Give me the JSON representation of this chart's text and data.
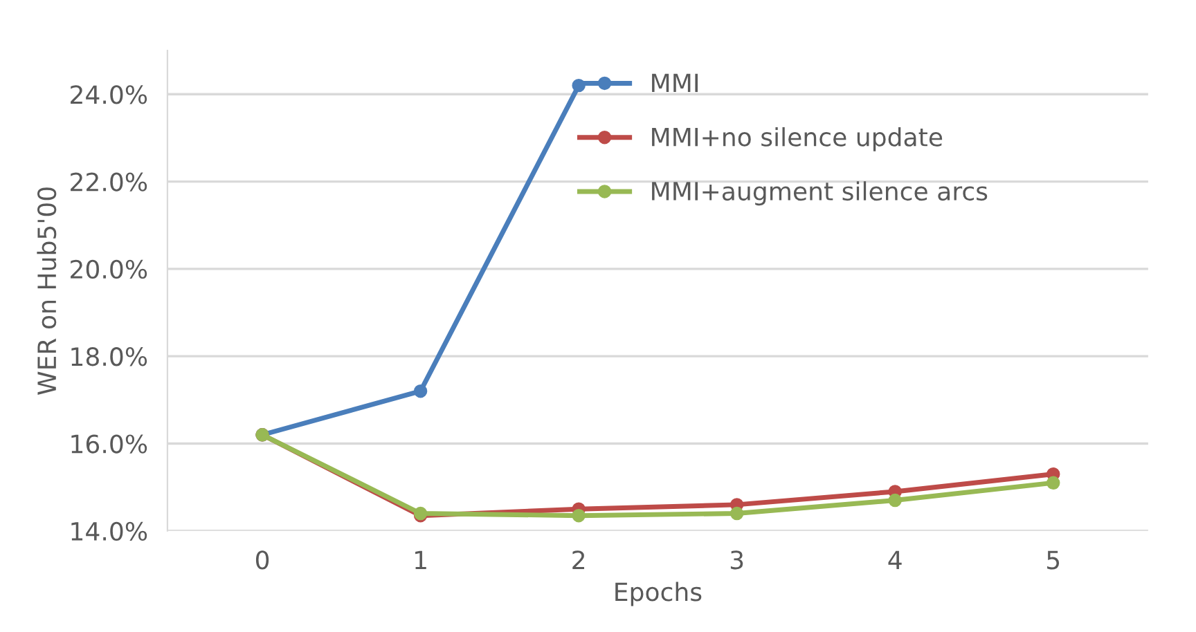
{
  "chart_data": {
    "type": "line",
    "xlabel": "Epochs",
    "ylabel": "WER on Hub5'00",
    "categories": [
      "0",
      "1",
      "2",
      "3",
      "4",
      "5"
    ],
    "series": [
      {
        "name": "MMI",
        "color": "#4a7ebb",
        "values": [
          16.2,
          17.2,
          24.2,
          null,
          null,
          null
        ]
      },
      {
        "name": "MMI+no silence update",
        "color": "#be4b48",
        "values": [
          16.2,
          14.35,
          14.5,
          14.6,
          14.9,
          15.3
        ]
      },
      {
        "name": "MMI+augment silence arcs",
        "color": "#98b954",
        "values": [
          16.2,
          14.4,
          14.35,
          14.4,
          14.7,
          15.1
        ]
      }
    ],
    "ylim": [
      14,
      25
    ],
    "yticks": [
      {
        "value": 14,
        "label": "14.0%"
      },
      {
        "value": 16,
        "label": "16.0%"
      },
      {
        "value": 18,
        "label": "18.0%"
      },
      {
        "value": 20,
        "label": "20.0%"
      },
      {
        "value": 22,
        "label": "22.0%"
      },
      {
        "value": 24,
        "label": "24.0%"
      }
    ],
    "grid": "y",
    "legend": "top right",
    "marker": "circle",
    "line_style": "solid"
  }
}
